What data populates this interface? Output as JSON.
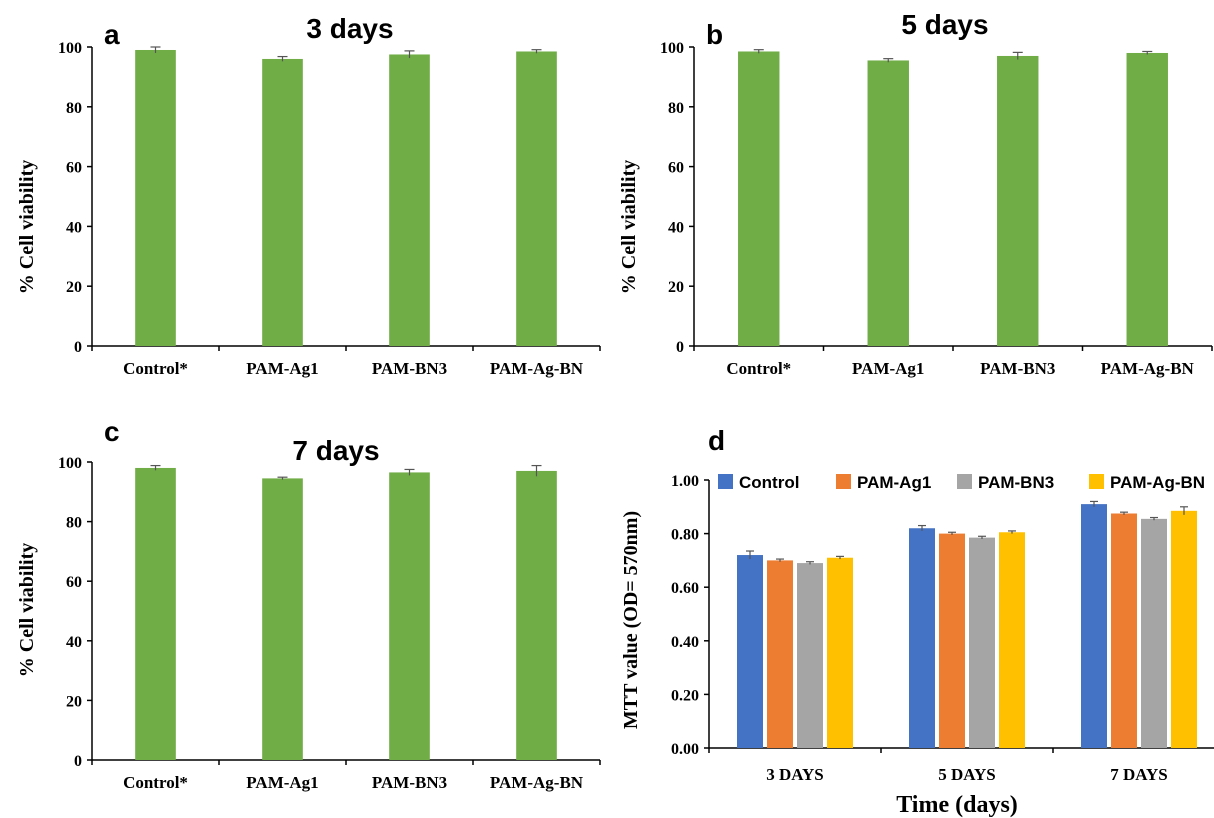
{
  "chart_data": [
    {
      "panel": "a",
      "type": "bar",
      "title": "3 days",
      "ylabel": "% Cell viability",
      "xlabel": "",
      "ylim": [
        0,
        100
      ],
      "yticks": [
        "0",
        "20",
        "40",
        "60",
        "80",
        "100"
      ],
      "categories": [
        "Control*",
        "PAM-Ag1",
        "PAM-BN3",
        "PAM-Ag-BN"
      ],
      "values": [
        99,
        96,
        97.5,
        98.5
      ],
      "errors": [
        1,
        0.8,
        1.2,
        0.6
      ],
      "color": "#70AD47"
    },
    {
      "panel": "b",
      "type": "bar",
      "title": "5 days",
      "ylabel": "% Cell viability",
      "xlabel": "",
      "ylim": [
        0,
        100
      ],
      "yticks": [
        "0",
        "20",
        "40",
        "60",
        "80",
        "100"
      ],
      "categories": [
        "Control*",
        "PAM-Ag1",
        "PAM-BN3",
        "PAM-Ag-BN"
      ],
      "values": [
        98.5,
        95.5,
        97,
        98
      ],
      "errors": [
        0.6,
        0.6,
        1.2,
        0.5
      ],
      "color": "#70AD47"
    },
    {
      "panel": "c",
      "type": "bar",
      "title": "7 days",
      "ylabel": "% Cell viability",
      "xlabel": "",
      "ylim": [
        0,
        100
      ],
      "yticks": [
        "0",
        "20",
        "40",
        "60",
        "80",
        "100"
      ],
      "categories": [
        "Control*",
        "PAM-Ag1",
        "PAM-BN3",
        "PAM-Ag-BN"
      ],
      "values": [
        98,
        94.5,
        96.5,
        97
      ],
      "errors": [
        0.8,
        0.4,
        1.0,
        1.8
      ],
      "color": "#70AD47"
    },
    {
      "panel": "d",
      "type": "bar",
      "title": "",
      "ylabel": "MTT value (OD= 570nm)",
      "xlabel": "Time (days)",
      "ylim": [
        0,
        1.0
      ],
      "yticks": [
        "0.00",
        "0.20",
        "0.40",
        "0.60",
        "0.80",
        "1.00"
      ],
      "categories": [
        "3 DAYS",
        "5 DAYS",
        "7 DAYS"
      ],
      "legend_position": "top",
      "series": [
        {
          "name": "Control",
          "color": "#4472C4",
          "values": [
            0.72,
            0.82,
            0.91
          ],
          "errors": [
            0.015,
            0.01,
            0.01
          ]
        },
        {
          "name": "PAM-Ag1",
          "color": "#ED7D31",
          "values": [
            0.7,
            0.8,
            0.875
          ],
          "errors": [
            0.005,
            0.005,
            0.005
          ]
        },
        {
          "name": "PAM-BN3",
          "color": "#A5A5A5",
          "values": [
            0.69,
            0.785,
            0.855
          ],
          "errors": [
            0.005,
            0.005,
            0.005
          ]
        },
        {
          "name": "PAM-Ag-BN",
          "color": "#FFC000",
          "values": [
            0.71,
            0.805,
            0.885
          ],
          "errors": [
            0.005,
            0.005,
            0.015
          ]
        }
      ]
    }
  ]
}
